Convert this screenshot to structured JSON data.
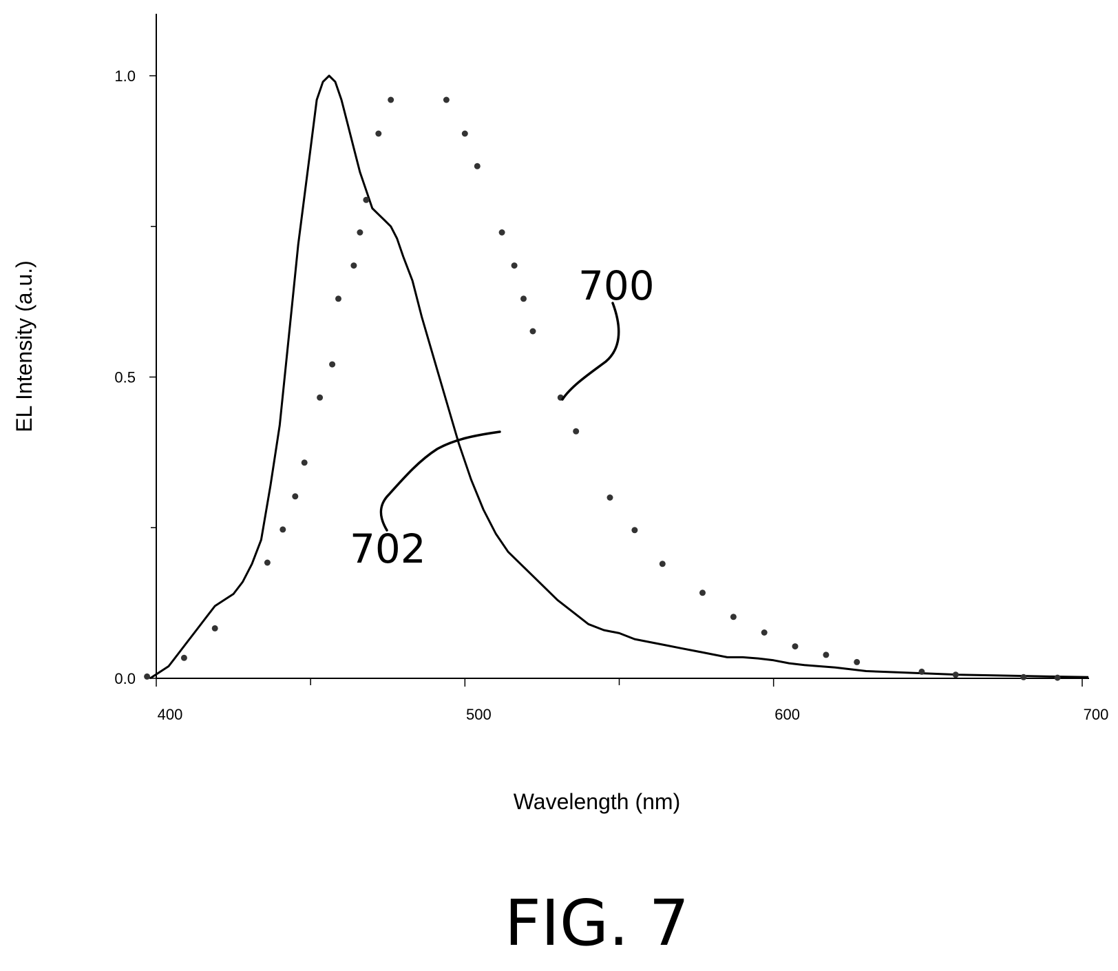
{
  "chart_data": {
    "type": "line",
    "xlabel": "Wavelength (nm)",
    "ylabel": "EL Intensity (a.u.)",
    "xlim": [
      400,
      700
    ],
    "ylim": [
      0,
      1.0
    ],
    "x_ticks": [
      {
        "value": 400,
        "label": "400"
      },
      {
        "value": 500,
        "label": "500"
      },
      {
        "value": 600,
        "label": "600"
      },
      {
        "value": 700,
        "label": "700"
      }
    ],
    "x_minor_ticks": [
      450,
      550
    ],
    "y_ticks": [
      {
        "value": 0.0,
        "label": "0.0"
      },
      {
        "value": 0.5,
        "label": "0.5"
      },
      {
        "value": 1.0,
        "label": "1.0"
      }
    ],
    "y_minor_ticks": [
      0.25,
      0.75
    ],
    "grid": false,
    "series": [
      {
        "name": "702",
        "style": "solid",
        "x": [
          398,
          401,
          404,
          407,
          410,
          413,
          416,
          419,
          422,
          425,
          428,
          431,
          434,
          437,
          440,
          442,
          444,
          446,
          448,
          450,
          452,
          454,
          456,
          458,
          460,
          462,
          464,
          466,
          468,
          470,
          472,
          474,
          476,
          478,
          480,
          483,
          486,
          490,
          494,
          498,
          502,
          506,
          510,
          514,
          518,
          522,
          526,
          530,
          535,
          540,
          545,
          550,
          555,
          560,
          565,
          570,
          575,
          580,
          585,
          590,
          595,
          600,
          605,
          610,
          615,
          620,
          625,
          630,
          640,
          650,
          660,
          670,
          680,
          690,
          702
        ],
        "values": [
          0.0,
          0.01,
          0.02,
          0.04,
          0.06,
          0.08,
          0.1,
          0.12,
          0.13,
          0.14,
          0.16,
          0.19,
          0.23,
          0.32,
          0.42,
          0.52,
          0.62,
          0.72,
          0.8,
          0.88,
          0.96,
          0.99,
          1.0,
          0.99,
          0.96,
          0.92,
          0.88,
          0.84,
          0.81,
          0.78,
          0.77,
          0.76,
          0.75,
          0.73,
          0.7,
          0.66,
          0.6,
          0.53,
          0.46,
          0.39,
          0.33,
          0.28,
          0.24,
          0.21,
          0.19,
          0.17,
          0.15,
          0.13,
          0.11,
          0.09,
          0.08,
          0.075,
          0.065,
          0.06,
          0.055,
          0.05,
          0.045,
          0.04,
          0.035,
          0.035,
          0.033,
          0.03,
          0.025,
          0.022,
          0.02,
          0.018,
          0.015,
          0.012,
          0.01,
          0.008,
          0.006,
          0.005,
          0.004,
          0.003,
          0.002
        ]
      },
      {
        "name": "700",
        "style": "dotted",
        "x": [
          397,
          409,
          419,
          436,
          441,
          445,
          448,
          453,
          457,
          459,
          464,
          466,
          468,
          472,
          476,
          494,
          500,
          504,
          512,
          516,
          519,
          522,
          531,
          536,
          547,
          555,
          564,
          577,
          587,
          597,
          607,
          617,
          627,
          648,
          659,
          681,
          692
        ],
        "values": [
          0.003,
          0.034,
          0.083,
          0.192,
          0.247,
          0.302,
          0.358,
          0.466,
          0.521,
          0.63,
          0.685,
          0.74,
          0.794,
          0.904,
          0.96,
          0.96,
          0.904,
          0.85,
          0.74,
          0.685,
          0.63,
          0.576,
          0.466,
          0.41,
          0.3,
          0.246,
          0.19,
          0.142,
          0.102,
          0.076,
          0.053,
          0.039,
          0.027,
          0.011,
          0.006,
          0.002,
          0.001
        ]
      }
    ]
  },
  "annotations": {
    "label_700": "700",
    "label_702": "702",
    "figure_label": "FIG. 7"
  }
}
